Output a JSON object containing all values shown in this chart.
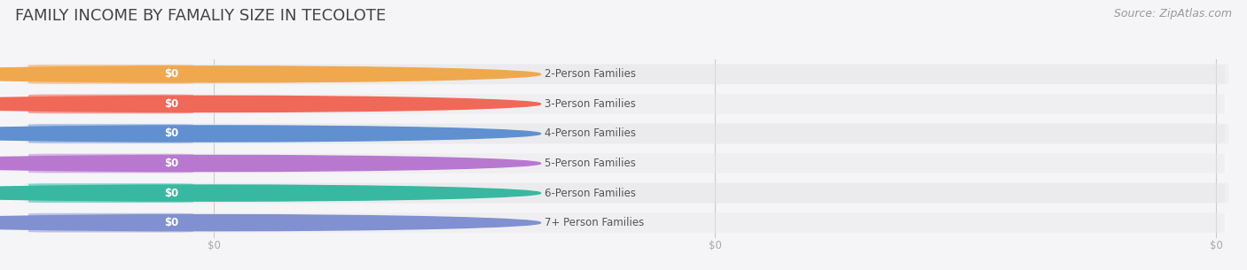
{
  "title": "FAMILY INCOME BY FAMALIY SIZE IN TECOLOTE",
  "source": "Source: ZipAtlas.com",
  "categories": [
    "2-Person Families",
    "3-Person Families",
    "4-Person Families",
    "5-Person Families",
    "6-Person Families",
    "7+ Person Families"
  ],
  "values": [
    0,
    0,
    0,
    0,
    0,
    0
  ],
  "bar_colors": [
    "#f5c08a",
    "#f5948a",
    "#9ab8e8",
    "#d4a8e8",
    "#6dcfc0",
    "#b0b8e8"
  ],
  "dot_colors": [
    "#f0a84e",
    "#f06858",
    "#6090d0",
    "#b878d0",
    "#38b8a0",
    "#8090d0"
  ],
  "bg_color": "#f5f5f8",
  "row_bg_even": "#efefef",
  "row_bg_odd": "#f7f7f7",
  "pill_bg_color": "#e8e8ec",
  "label_color": "#555555",
  "value_label_color": "#ffffff",
  "title_color": "#444444",
  "source_color": "#999999",
  "tick_color": "#aaaaaa",
  "gridline_color": "#cccccc",
  "figsize": [
    14.06,
    3.05
  ],
  "dpi": 100,
  "title_fontsize": 13,
  "label_fontsize": 8.5,
  "value_fontsize": 8.5,
  "source_fontsize": 9,
  "tick_fontsize": 8.5,
  "n_ticks": 3,
  "tick_labels": [
    "$0",
    "$0",
    "$0"
  ]
}
